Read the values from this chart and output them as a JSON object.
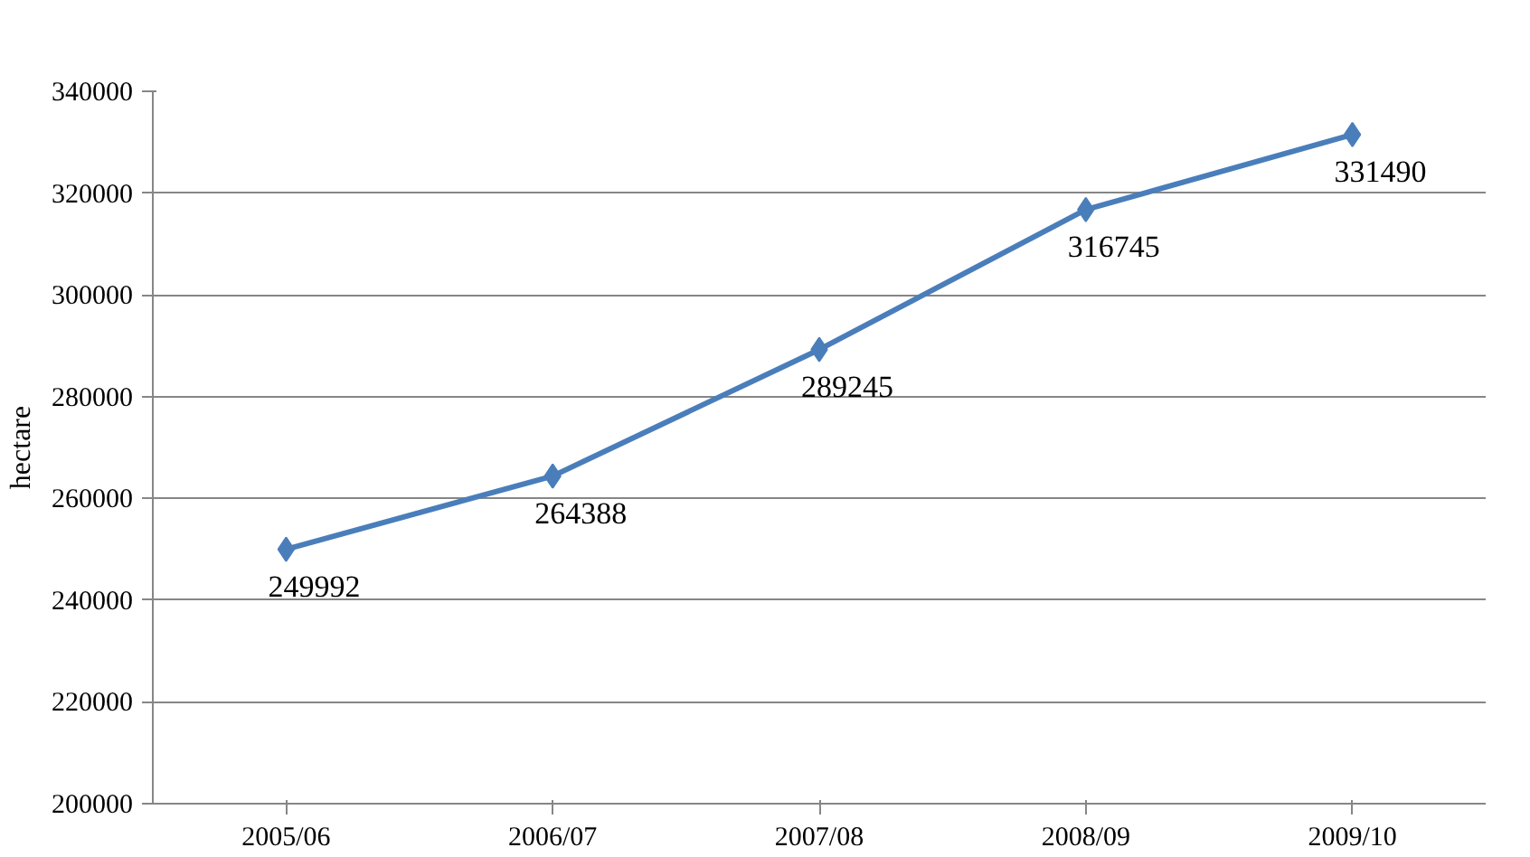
{
  "chart_data": {
    "type": "line",
    "ylabel": "hectare",
    "categories": [
      "2005/06",
      "2006/07",
      "2007/08",
      "2008/09",
      "2009/10"
    ],
    "series": [
      {
        "color": "#4a7ebb",
        "values": [
          249992,
          264388,
          289245,
          316745,
          331490
        ]
      }
    ],
    "ylim": [
      200000,
      340000
    ],
    "yticks": [
      200000,
      220000,
      240000,
      260000,
      280000,
      300000,
      320000,
      340000
    ],
    "grid": "y",
    "marker": "diamond",
    "line_style": "solid",
    "data_labels": true
  }
}
